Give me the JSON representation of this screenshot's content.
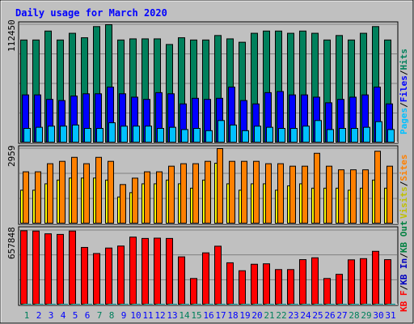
{
  "chart_data": {
    "type": "bar",
    "title": "Daily usage for March 2020",
    "categories": [
      "1",
      "2",
      "3",
      "4",
      "5",
      "6",
      "7",
      "8",
      "9",
      "10",
      "11",
      "12",
      "13",
      "14",
      "15",
      "16",
      "17",
      "18",
      "19",
      "20",
      "21",
      "22",
      "23",
      "24",
      "25",
      "26",
      "27",
      "28",
      "29",
      "30",
      "31"
    ],
    "weekend_days": [
      "1",
      "7",
      "8",
      "14",
      "15",
      "21",
      "22",
      "28",
      "29"
    ],
    "panels": [
      {
        "name": "hits-files-pages",
        "ymax_label": "112450",
        "ymax": 112450,
        "series": [
          {
            "name": "Hits",
            "color": "#00805c",
            "values": [
              97924,
              97924,
              106434,
              97924,
              104306,
              100051,
              110689,
              112450,
              97924,
              99005,
              99005,
              99005,
              93660,
              100051,
              97924,
              97924,
              102179,
              99005,
              95787,
              104306,
              106434,
              106434,
              104306,
              106434,
              104306,
              97924,
              102179,
              97924,
              104306,
              110689,
              97924
            ]
          },
          {
            "name": "Files",
            "color": "#0000ff",
            "values": [
              45720,
              45720,
              41439,
              40354,
              44661,
              46775,
              46775,
              53152,
              46775,
              43556,
              41439,
              47857,
              46775,
              37160,
              42497,
              41439,
              42497,
              53152,
              40354,
              37160,
              47857,
              48941,
              45720,
              45720,
              43556,
              38224,
              41439,
              43556,
              45720,
              53152,
              37160
            ]
          },
          {
            "name": "Pages",
            "color": "#00c0ff",
            "values": [
              13842,
              14911,
              15975,
              16014,
              17078,
              13842,
              13842,
              19201,
              15975,
              16014,
              16014,
              13842,
              14911,
              12761,
              13842,
              11688,
              21330,
              17078,
              11688,
              15975,
              14911,
              13842,
              13842,
              16014,
              21330,
              12761,
              13842,
              13842,
              14911,
              20272,
              12761
            ]
          }
        ]
      },
      {
        "name": "visits-sites",
        "ymax_label": "2959",
        "ymax": 2959,
        "series": [
          {
            "name": "Visits",
            "color": "#ffff00",
            "values": [
              1326,
              1326,
              1577,
              1724,
              1803,
              1803,
              1803,
              1724,
              1060,
              1229,
              1577,
              1577,
              1724,
              1577,
              1406,
              1724,
              2387,
              1577,
              1326,
              1577,
              1577,
              1326,
              1497,
              1577,
              1406,
              1406,
              1406,
              1326,
              1406,
              1724,
              1406
            ]
          },
          {
            "name": "Sites",
            "color": "#ff8000",
            "values": [
              2049,
              2049,
              2367,
              2460,
              2617,
              2367,
              2617,
              2460,
              1548,
              1800,
              2049,
              2049,
              2270,
              2367,
              2367,
              2460,
              2959,
              2460,
              2460,
              2460,
              2367,
              2367,
              2270,
              2270,
              2776,
              2270,
              2127,
              2127,
              2127,
              2857,
              2270
            ]
          }
        ]
      },
      {
        "name": "kbout-kbin-kbf",
        "ymax_label": "657848",
        "ymax": 657848,
        "series": [
          {
            "name": "KB F",
            "color": "#ff0000",
            "values": [
              655248,
              652647,
              628213,
              622926,
              652647,
              508006,
              454218,
              502650,
              520244,
              599189,
              587244,
              589929,
              587244,
              424736,
              233751,
              460043,
              518869,
              372458,
              302264,
              359508,
              363417,
              312627,
              312627,
              400117,
              416567,
              233751,
              270617,
              398436,
              409009,
              473584,
              400117
            ]
          },
          {
            "name": "KB In",
            "color": "#008040",
            "values": [
              0,
              0,
              0,
              0,
              0,
              0,
              0,
              0,
              0,
              0,
              0,
              0,
              0,
              0,
              0,
              0,
              0,
              0,
              0,
              0,
              0,
              0,
              0,
              0,
              0,
              0,
              0,
              0,
              0,
              0,
              0
            ]
          },
          {
            "name": "KB Out",
            "color": "#00a0a0",
            "values": [
              0,
              0,
              0,
              0,
              0,
              0,
              0,
              0,
              0,
              0,
              0,
              0,
              0,
              0,
              0,
              0,
              0,
              0,
              0,
              0,
              0,
              0,
              0,
              0,
              0,
              0,
              0,
              0,
              0,
              0,
              0
            ]
          }
        ]
      }
    ],
    "legends": [
      [
        {
          "text": "Pages",
          "color": "#00c0ff"
        },
        {
          "text": "/",
          "color": "#000000"
        },
        {
          "text": "Files",
          "color": "#0000ff"
        },
        {
          "text": "/",
          "color": "#000000"
        },
        {
          "text": "Hits",
          "color": "#00805c"
        }
      ],
      [
        {
          "text": "Visits",
          "color": "#c0c000"
        },
        {
          "text": "/",
          "color": "#000000"
        },
        {
          "text": "Sites",
          "color": "#ff8000"
        }
      ],
      [
        {
          "text": "KB F",
          "color": "#ff0000"
        },
        {
          "text": "/",
          "color": "#000000"
        },
        {
          "text": "KB In",
          "color": "#0000c0"
        },
        {
          "text": "/",
          "color": "#000000"
        },
        {
          "text": "KB Out",
          "color": "#008040"
        }
      ]
    ],
    "colors": {
      "background": "#c0c0c0",
      "title": "#0000ff",
      "weekday_label": "#0000ff",
      "weekend_label": "#00805c",
      "gridline": "#808080"
    },
    "grid": true
  }
}
